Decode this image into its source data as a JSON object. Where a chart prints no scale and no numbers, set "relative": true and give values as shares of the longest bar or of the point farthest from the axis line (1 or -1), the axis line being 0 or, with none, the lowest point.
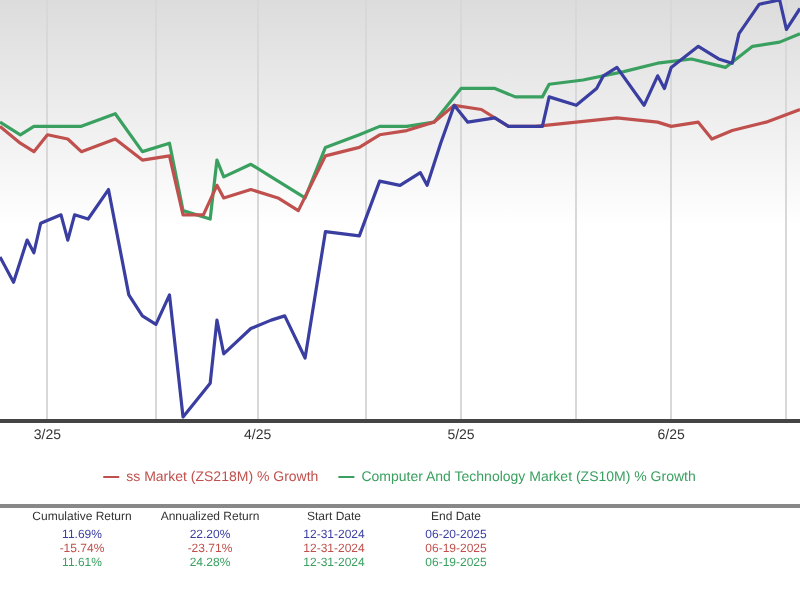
{
  "chart_data": {
    "type": "line",
    "relative": true,
    "grid": "x",
    "legend": "bottom",
    "marker": "none",
    "line_style": "solid",
    "xlim": [
      "2025-02-22",
      "2025-06-20"
    ],
    "xticks": [
      {
        "value": "2025-03-01",
        "label": "3/25"
      },
      {
        "value": "2025-03-17",
        "label": null
      },
      {
        "value": "2025-04-01",
        "label": "4/25"
      },
      {
        "value": "2025-04-17",
        "label": null
      },
      {
        "value": "2025-05-01",
        "label": "5/25"
      },
      {
        "value": "2025-05-18",
        "label": null
      },
      {
        "value": "2025-06-01",
        "label": "6/25"
      },
      {
        "value": "2025-06-18",
        "label": null
      }
    ],
    "series": [
      {
        "color": "#3a3ea0",
        "x": [
          "2025-02-22",
          "2025-02-24",
          "2025-02-26",
          "2025-02-27",
          "2025-02-28",
          "2025-03-03",
          "2025-03-04",
          "2025-03-05",
          "2025-03-07",
          "2025-03-10",
          "2025-03-13",
          "2025-03-15",
          "2025-03-17",
          "2025-03-19",
          "2025-03-21",
          "2025-03-24",
          "2025-03-25",
          "2025-03-26",
          "2025-03-27",
          "2025-03-31",
          "2025-04-03",
          "2025-04-05",
          "2025-04-08",
          "2025-04-11",
          "2025-04-16",
          "2025-04-19",
          "2025-04-22",
          "2025-04-25",
          "2025-04-26",
          "2025-04-28",
          "2025-04-30",
          "2025-05-02",
          "2025-05-06",
          "2025-05-08",
          "2025-05-11",
          "2025-05-13",
          "2025-05-14",
          "2025-05-18",
          "2025-05-21",
          "2025-05-22",
          "2025-05-24",
          "2025-05-28",
          "2025-05-30",
          "2025-05-31",
          "2025-06-01",
          "2025-06-05",
          "2025-06-08",
          "2025-06-10",
          "2025-06-11",
          "2025-06-14",
          "2025-06-17",
          "2025-06-18",
          "2025-06-20"
        ],
        "values": [
          0.39,
          0.33,
          0.43,
          0.4,
          0.47,
          0.49,
          0.43,
          0.49,
          0.48,
          0.55,
          0.3,
          0.25,
          0.23,
          0.3,
          0.01,
          0.07,
          0.09,
          0.24,
          0.16,
          0.22,
          0.24,
          0.25,
          0.15,
          0.45,
          0.44,
          0.57,
          0.56,
          0.59,
          0.56,
          0.66,
          0.75,
          0.71,
          0.72,
          0.7,
          0.7,
          0.7,
          0.77,
          0.75,
          0.79,
          0.82,
          0.84,
          0.75,
          0.82,
          0.79,
          0.84,
          0.89,
          0.86,
          0.85,
          0.92,
          0.99,
          1,
          0.93,
          0.98
        ]
      },
      {
        "name": "ss Market (ZS218M) % Growth",
        "color": "#c0504d",
        "x": [
          "2025-02-22",
          "2025-02-25",
          "2025-02-27",
          "2025-03-01",
          "2025-03-04",
          "2025-03-06",
          "2025-03-11",
          "2025-03-15",
          "2025-03-19",
          "2025-03-21",
          "2025-03-24",
          "2025-03-26",
          "2025-03-27",
          "2025-03-31",
          "2025-04-04",
          "2025-04-07",
          "2025-04-11",
          "2025-04-16",
          "2025-04-19",
          "2025-04-23",
          "2025-04-27",
          "2025-04-30",
          "2025-05-04",
          "2025-05-08",
          "2025-05-12",
          "2025-05-18",
          "2025-05-24",
          "2025-05-30",
          "2025-06-01",
          "2025-06-05",
          "2025-06-07",
          "2025-06-10",
          "2025-06-15",
          "2025-06-20"
        ],
        "values": [
          0.7,
          0.66,
          0.64,
          0.68,
          0.67,
          0.64,
          0.67,
          0.62,
          0.63,
          0.49,
          0.49,
          0.56,
          0.53,
          0.55,
          0.53,
          0.5,
          0.63,
          0.65,
          0.68,
          0.69,
          0.71,
          0.75,
          0.74,
          0.7,
          0.7,
          0.71,
          0.72,
          0.71,
          0.7,
          0.71,
          0.67,
          0.69,
          0.71,
          0.74
        ]
      },
      {
        "name": "Computer And Technology Market (ZS10M) % Growth",
        "color": "#3aa060",
        "x": [
          "2025-02-22",
          "2025-02-25",
          "2025-02-27",
          "2025-03-02",
          "2025-03-06",
          "2025-03-11",
          "2025-03-15",
          "2025-03-19",
          "2025-03-21",
          "2025-03-25",
          "2025-03-26",
          "2025-03-27",
          "2025-03-31",
          "2025-04-03",
          "2025-04-08",
          "2025-04-11",
          "2025-04-16",
          "2025-04-19",
          "2025-04-23",
          "2025-04-27",
          "2025-05-01",
          "2025-05-06",
          "2025-05-09",
          "2025-05-13",
          "2025-05-14",
          "2025-05-19",
          "2025-05-25",
          "2025-05-30",
          "2025-06-04",
          "2025-06-09",
          "2025-06-13",
          "2025-06-17",
          "2025-06-20"
        ],
        "values": [
          0.71,
          0.68,
          0.7,
          0.7,
          0.7,
          0.73,
          0.64,
          0.66,
          0.5,
          0.48,
          0.62,
          0.58,
          0.61,
          0.58,
          0.53,
          0.65,
          0.68,
          0.7,
          0.7,
          0.71,
          0.79,
          0.79,
          0.77,
          0.77,
          0.8,
          0.81,
          0.83,
          0.85,
          0.86,
          0.84,
          0.89,
          0.9,
          0.92
        ]
      }
    ],
    "annotations": [
      "Cumulative Return",
      "Annualized Return",
      "Start Date",
      "End Date",
      "11.69%",
      "22.20%",
      "12-31-2024",
      "06-20-2025",
      "-15.74%",
      "-23.71%",
      "12-31-2024",
      "06-19-2025",
      "11.61%",
      "24.28%",
      "12-31-2024",
      "06-19-2025"
    ]
  }
}
